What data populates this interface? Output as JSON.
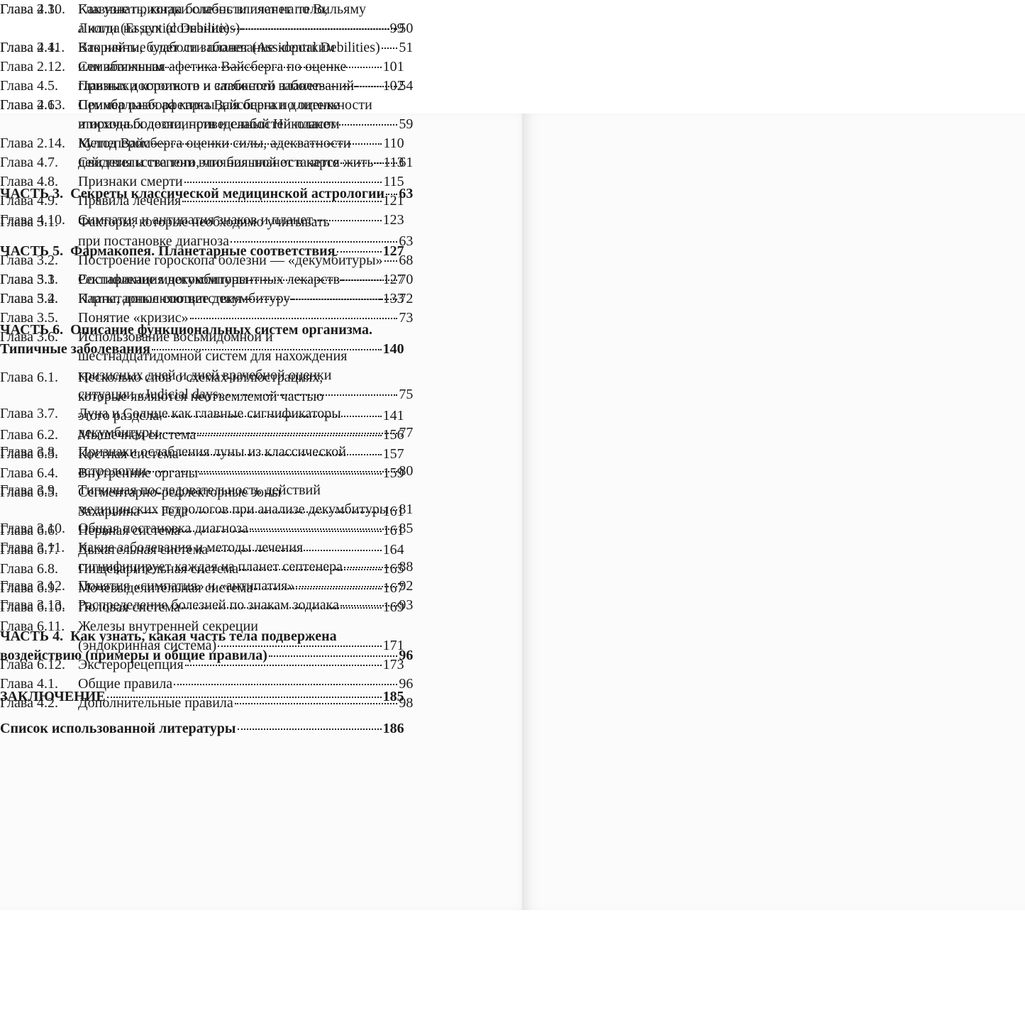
{
  "pages": [
    {
      "entries": [
        {
          "label": "Глава 2.10.",
          "lines": [
            "Главные признаки слабости планет по Вильяму",
            "Лилли (Essential Debilities)"
          ],
          "page": 50
        },
        {
          "label": "Глава 2.11.",
          "lines": [
            "Вторичные слабости планет (Assidental Debilities)"
          ],
          "page": 51
        },
        {
          "label": "Глава 2.12.",
          "lines": [
            "Семибалльная афетика Вайсберга по оценке",
            "главных достоинств и слабостей планет"
          ],
          "page": 54
        },
        {
          "label": "Глава 2.13.",
          "lines": [
            "Семибальная афетика Вайсберга по оценке",
            "вторичных достоинств и слабостей планет"
          ],
          "page": 59
        },
        {
          "label": "Глава 2.14.",
          "lines": [
            "Метод Вайсберга оценки силы, адекватности",
            "действия и степени влияния планет в карте"
          ],
          "page": 61
        },
        {
          "part": "ЧАСТЬ 3.",
          "lines": [
            "Секреты классической медицинской астрологии"
          ],
          "page": 63
        },
        {
          "label": "Глава 3.1.",
          "lines": [
            "Факторы, которые необходимо учитывать",
            "при постановке диагноза"
          ],
          "page": 63
        },
        {
          "label": "Глава 3.2.",
          "lines": [
            "Построение гороскопа болезни — «декумбитуры»"
          ],
          "page": 68
        },
        {
          "label": "Глава 3.3",
          "lines": [
            "Ректификация декумбитуры"
          ],
          "page": 70
        },
        {
          "label": "Глава 3.4.",
          "lines": [
            "Карты, дополняющие декумбитуру"
          ],
          "page": 72
        },
        {
          "label": "Глава 3.5.",
          "lines": [
            "Понятие «кризис»"
          ],
          "page": 73
        },
        {
          "label": "Глава 3.6.",
          "lines": [
            "Использование восьмидомной и",
            "шестнадцатидомной систем для нахождения",
            "кризисных дней и дней врачебной оценки",
            "ситуации «Judicial days»"
          ],
          "page": 75
        },
        {
          "label": "Глава 3.7.",
          "lines": [
            "Луна и Солнце как главные сигнификаторы",
            "декумбитуры"
          ],
          "page": 77
        },
        {
          "label": "Глава 3.8.",
          "lines": [
            "Признаки ослабления луны из классической",
            "астрологии"
          ],
          "page": 80
        },
        {
          "label": "Глава 3.9.",
          "lines": [
            "Типичная последовательность действий",
            "медицинских астрологов при анализе декумбитуры"
          ],
          "page": 81
        },
        {
          "label": "Глава 3.10.",
          "lines": [
            "Общая постановка диагноза"
          ],
          "page": 85
        },
        {
          "label": "Глава 3.11.",
          "lines": [
            "Какие заболевания и методы лечения",
            "сигнифицирует каждая из планет септенера"
          ],
          "page": 88
        },
        {
          "label": "Глава 3.12.",
          "lines": [
            "Понятия «симпатия» и «антипатия»"
          ],
          "page": 92
        },
        {
          "label": "Глава 3.13.",
          "lines": [
            "Распределение болезней по знакам зодиака"
          ],
          "page": 93
        },
        {
          "part": "ЧАСТЬ 4.",
          "lines": [
            "Как узнать, какая часть тела подвержена",
            "воздействию (примеры и общие правила)"
          ],
          "page": 96
        },
        {
          "label": "Глава 4.1.",
          "lines": [
            "Общие правила"
          ],
          "page": 96
        },
        {
          "label": "Глава 4.2.",
          "lines": [
            "Дополнительные правила"
          ],
          "page": 98
        }
      ]
    },
    {
      "entries": [
        {
          "label": "Глава 4.3.",
          "lines": [
            "Как узнать, когда болезнь влияет на тело,",
            "а когда на дух (сознание)"
          ],
          "page": 99
        },
        {
          "label": "Глава 4.4.",
          "lines": [
            "Как найти, будет ли заболевание коротким",
            "или затяжным"
          ],
          "page": 101
        },
        {
          "label": "Глава 4.5.",
          "lines": [
            "Признаки короткого и затяжного заболеваний"
          ],
          "page": 102
        },
        {
          "label": "Глава 4.6.",
          "lines": [
            "Пример разбора карты для оценки длительности",
            "и исхода болезни, приведенный Николасом",
            "Кулпепером"
          ],
          "page": 110
        },
        {
          "label": "Глава 4.7.",
          "lines": [
            "Свидетельства того, что больной останется жить"
          ],
          "page": 113
        },
        {
          "label": "Глава 4.8.",
          "lines": [
            "Признаки смерти"
          ],
          "page": 115
        },
        {
          "label": "Глава 4.9.",
          "lines": [
            "Правила лечения"
          ],
          "page": 121
        },
        {
          "label": "Глава 4.10.",
          "lines": [
            "Симпатия и антипатия знаков и планет"
          ],
          "page": 123
        },
        {
          "part": "ЧАСТЬ 5.",
          "lines": [
            "Фармакопея. Планетарные соответствия"
          ],
          "page": 127
        },
        {
          "label": "Глава 5.1.",
          "lines": [
            "Составление многокомпонентных лекарств"
          ],
          "page": 127
        },
        {
          "label": "Глава 5.2.",
          "lines": [
            "Планетарные соответствия"
          ],
          "page": 133
        },
        {
          "part": "ЧАСТЬ 6.",
          "lines": [
            "Описание функциональных систем организма.",
            "Типичные заболевания"
          ],
          "page": 140
        },
        {
          "label": "Глава 6.1.",
          "lines": [
            "Несколько слов о схемах-иллюстрациях,",
            "которые являются неотъемлемой частью",
            "этого раздела"
          ],
          "page": 141
        },
        {
          "label": "Глава 6.2.",
          "lines": [
            "Мышечная система"
          ],
          "page": 156
        },
        {
          "label": "Глава 6.3.",
          "lines": [
            "Костная система"
          ],
          "page": 157
        },
        {
          "label": "Глава 6.4.",
          "lines": [
            "Внутренние органы"
          ],
          "page": 159
        },
        {
          "label": "Глава 6.5.",
          "lines": [
            "Сегментарно-рефлекторные зоны",
            "Захарьина — Геда"
          ],
          "page": 161
        },
        {
          "label": "Глава 6.6.",
          "lines": [
            "Нервная система"
          ],
          "page": 161
        },
        {
          "label": "Глава 6.7.",
          "lines": [
            "Дыхательная система"
          ],
          "page": 164
        },
        {
          "label": "Глава 6.8.",
          "lines": [
            "Пищеварительная система"
          ],
          "page": 165
        },
        {
          "label": "Глава 6.9.",
          "lines": [
            "Мочевыделительная система"
          ],
          "page": 167
        },
        {
          "label": "Глава 6.10.",
          "lines": [
            "Половая система"
          ],
          "page": 169
        },
        {
          "label": "Глава 6.11.",
          "lines": [
            "Железы внутренней секреции",
            "(эндокринная система)"
          ],
          "page": 171
        },
        {
          "label": "Глава 6.12.",
          "lines": [
            "Экстерорецепция"
          ],
          "page": 173
        },
        {
          "heading": "ЗАКЛЮЧЕНИЕ",
          "page": 185
        },
        {
          "heading": "Список использованной литературы",
          "page": 186
        }
      ]
    }
  ]
}
